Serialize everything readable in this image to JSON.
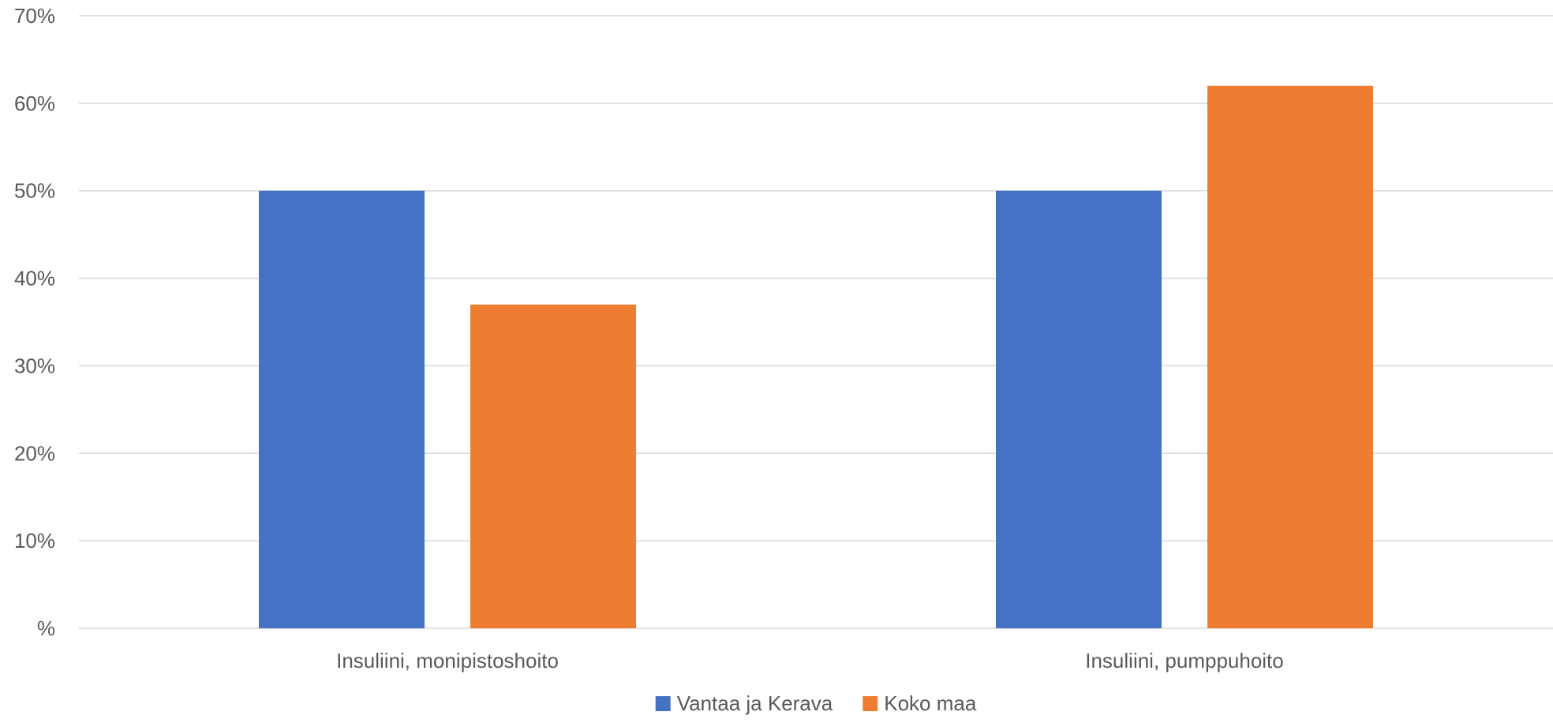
{
  "chart_data": {
    "type": "bar",
    "categories": [
      "Insuliini, monipistoshoito",
      "Insuliini, pumppuhoito"
    ],
    "series": [
      {
        "name": "Vantaa ja Kerava",
        "values": [
          50,
          50
        ],
        "color": "#4472C4"
      },
      {
        "name": "Koko maa",
        "values": [
          37,
          62
        ],
        "color": "#ED7D31"
      }
    ],
    "ylim": [
      0,
      70
    ],
    "yticks": [
      {
        "value": 0,
        "label": "%"
      },
      {
        "value": 10,
        "label": "10%"
      },
      {
        "value": 20,
        "label": "20%"
      },
      {
        "value": 30,
        "label": "30%"
      },
      {
        "value": 40,
        "label": "40%"
      },
      {
        "value": 50,
        "label": "50%"
      },
      {
        "value": 60,
        "label": "60%"
      },
      {
        "value": 70,
        "label": "70%"
      }
    ],
    "grid": true,
    "grid_color": "#D9D9D9",
    "legend_position": "bottom"
  }
}
